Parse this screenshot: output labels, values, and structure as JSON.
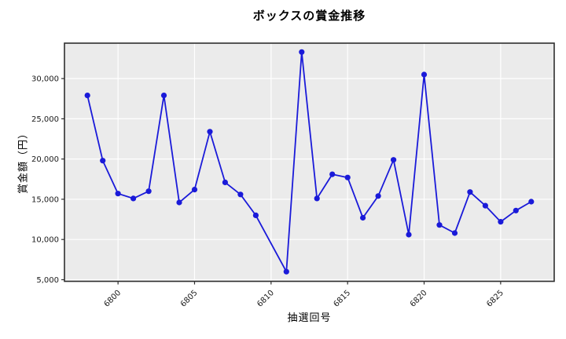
{
  "chart_data": {
    "type": "line",
    "title": "ボックスの賞金推移",
    "xlabel": "抽選回号",
    "ylabel": "賞金額（円）",
    "x": [
      6798,
      6799,
      6800,
      6801,
      6802,
      6803,
      6804,
      6805,
      6806,
      6807,
      6808,
      6809,
      6811,
      6812,
      6813,
      6814,
      6815,
      6816,
      6817,
      6818,
      6819,
      6820,
      6821,
      6822,
      6823,
      6824,
      6825,
      6826,
      6827
    ],
    "values": [
      27900,
      19800,
      15700,
      15100,
      16000,
      27900,
      14600,
      16200,
      23400,
      17100,
      15600,
      13000,
      6000,
      33300,
      15100,
      18100,
      17700,
      12700,
      15400,
      19900,
      10600,
      30500,
      11800,
      10800,
      15900,
      14200,
      12200,
      13600,
      14700
    ],
    "x_ticks": [
      6800,
      6805,
      6810,
      6815,
      6820,
      6825
    ],
    "y_ticks": [
      5000,
      10000,
      15000,
      20000,
      25000,
      30000
    ],
    "xlim": [
      6796.5,
      6828.5
    ],
    "ylim": [
      4800,
      34400
    ],
    "grid": true,
    "legend": "none",
    "colors": {
      "line": "#1a1ad9",
      "marker": "#1a1ad9",
      "plot_bg": "#ebebeb",
      "grid": "#ffffff",
      "frame": "#2e2e2e",
      "figure_bg": "#ffffff"
    }
  }
}
